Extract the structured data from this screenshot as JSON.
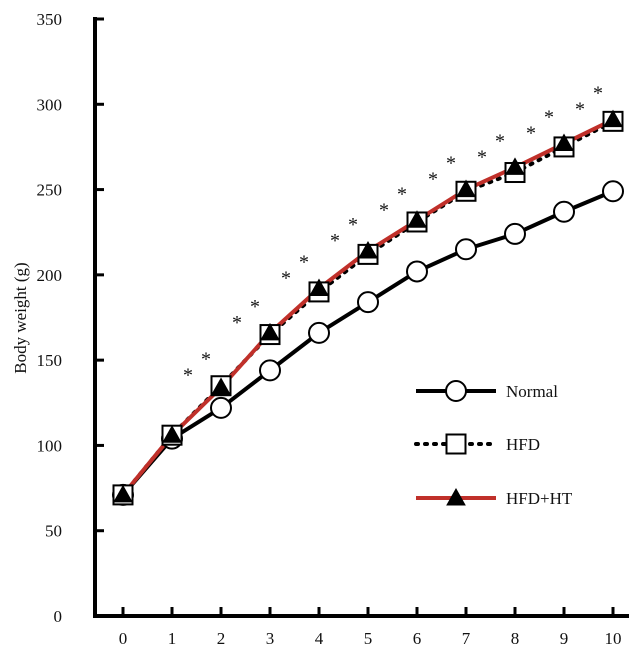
{
  "chart_data": {
    "type": "line",
    "title": "",
    "xlabel": "",
    "ylabel": "Body weight (g)",
    "x": [
      0,
      1,
      2,
      3,
      4,
      5,
      6,
      7,
      8,
      9,
      10
    ],
    "xticks": [
      "0",
      "1",
      "2",
      "3",
      "4",
      "5",
      "6",
      "7",
      "8",
      "9",
      "10"
    ],
    "ylim": [
      0,
      350
    ],
    "yticks": [
      "0",
      "50",
      "100",
      "150",
      "200",
      "250",
      "300",
      "350"
    ],
    "grid": false,
    "legend_position": "right",
    "series": [
      {
        "name": "Normal",
        "values": [
          71,
          104,
          122,
          144,
          166,
          184,
          202,
          215,
          224,
          237,
          249
        ],
        "color": "#000000",
        "marker": "circle",
        "line_style": "solid"
      },
      {
        "name": "HFD",
        "values": [
          71,
          106,
          135,
          165,
          190,
          212,
          231,
          249,
          260,
          275,
          290
        ],
        "color": "#000000",
        "marker": "square",
        "line_style": "dotted"
      },
      {
        "name": "HFD+HT",
        "values": [
          71,
          106,
          134,
          166,
          192,
          214,
          232,
          250,
          263,
          277,
          291
        ],
        "color": "#c0302a",
        "marker": "triangle",
        "line_style": "solid"
      }
    ],
    "annotations": {
      "mark": "*",
      "x_positions": [
        2,
        3,
        4,
        5,
        6,
        7,
        8,
        9,
        10
      ]
    }
  }
}
